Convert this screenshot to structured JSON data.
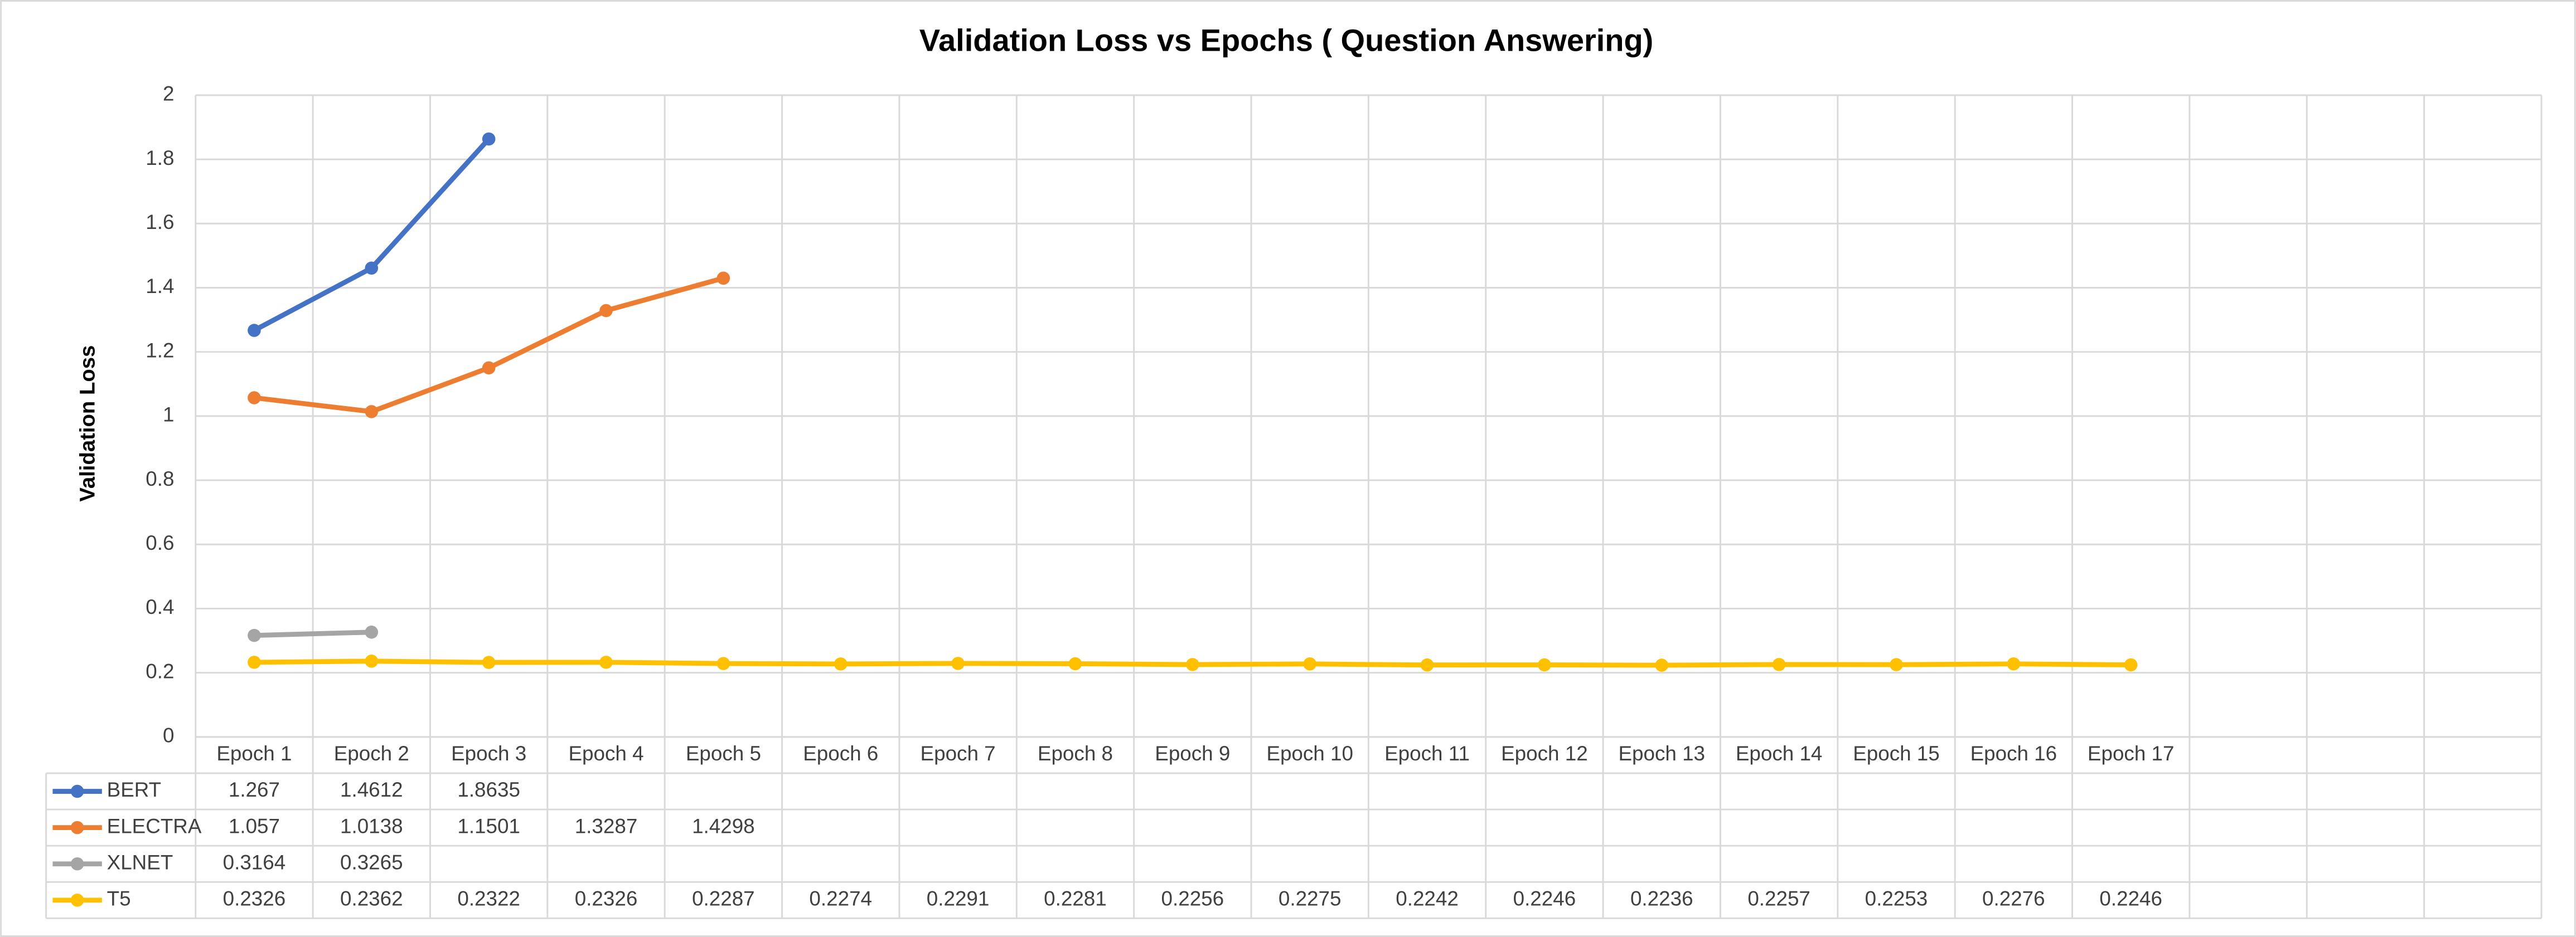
{
  "chart_data": {
    "type": "line",
    "title": "Validation Loss vs Epochs ( Question Answering)",
    "y_label": "Validation Loss",
    "categories": [
      "Epoch 1",
      "Epoch 2",
      "Epoch 3",
      "Epoch 4",
      "Epoch 5",
      "Epoch 6",
      "Epoch 7",
      "Epoch 8",
      "Epoch 9",
      "Epoch 10",
      "Epoch 11",
      "Epoch 12",
      "Epoch 13",
      "Epoch 14",
      "Epoch 15",
      "Epoch 16",
      "Epoch 17",
      null,
      null,
      null
    ],
    "series": [
      {
        "name": "BERT",
        "color": "#4472c4",
        "values": [
          1.267,
          1.4612,
          1.8635,
          null,
          null,
          null,
          null,
          null,
          null,
          null,
          null,
          null,
          null,
          null,
          null,
          null,
          null,
          null,
          null,
          null
        ]
      },
      {
        "name": "ELECTRA",
        "color": "#ed7d31",
        "values": [
          1.057,
          1.0138,
          1.1501,
          1.3287,
          1.4298,
          null,
          null,
          null,
          null,
          null,
          null,
          null,
          null,
          null,
          null,
          null,
          null,
          null,
          null,
          null
        ]
      },
      {
        "name": "XLNET",
        "color": "#a5a5a5",
        "values": [
          0.3164,
          0.3265,
          null,
          null,
          null,
          null,
          null,
          null,
          null,
          null,
          null,
          null,
          null,
          null,
          null,
          null,
          null,
          null,
          null,
          null
        ]
      },
      {
        "name": "T5",
        "color": "#ffc000",
        "values": [
          0.2326,
          0.2362,
          0.2322,
          0.2326,
          0.2287,
          0.2274,
          0.2291,
          0.2281,
          0.2256,
          0.2275,
          0.2242,
          0.2246,
          0.2236,
          0.2257,
          0.2253,
          0.2276,
          0.2246,
          null,
          null,
          null
        ]
      }
    ],
    "ylim": [
      0,
      2
    ],
    "yticks": [
      0,
      0.2,
      0.4,
      0.6,
      0.8,
      1,
      1.2,
      1.4,
      1.6,
      1.8,
      2
    ],
    "grid": true,
    "data_table": true
  }
}
